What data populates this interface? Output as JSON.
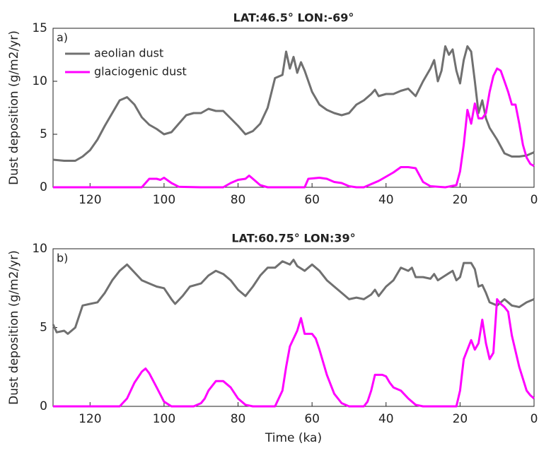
{
  "chart_data": [
    {
      "type": "line",
      "title": "LAT:46.5° LON:-69°",
      "annotation": "a)",
      "ylabel": "Dust deposition (g/m2/yr)",
      "xlim": [
        130,
        0
      ],
      "xticks": [
        120,
        100,
        80,
        60,
        40,
        20,
        0
      ],
      "ylim": [
        0,
        15
      ],
      "yticks": [
        0,
        5,
        10,
        15
      ],
      "legend": "upper left",
      "series": [
        {
          "name": "aeolian dust",
          "color": "#707070",
          "x": [
            130,
            127,
            124,
            122,
            120,
            118,
            116,
            114,
            112,
            110,
            108,
            106,
            104,
            102,
            100,
            98,
            96,
            94,
            92,
            90,
            88,
            86,
            84,
            82,
            80,
            78,
            76,
            74,
            72,
            70,
            68,
            67,
            66,
            65,
            64,
            63,
            62,
            60,
            58,
            56,
            54,
            52,
            50,
            48,
            46,
            44,
            43,
            42,
            40,
            38,
            36,
            34,
            32,
            30,
            28,
            27,
            26,
            25,
            24,
            23,
            22,
            21,
            20,
            19,
            18,
            17,
            16,
            15,
            14,
            13,
            12,
            10,
            8,
            6,
            4,
            2,
            0
          ],
          "values": [
            2.6,
            2.5,
            2.5,
            2.9,
            3.5,
            4.5,
            5.8,
            7.0,
            8.2,
            8.5,
            7.8,
            6.6,
            5.9,
            5.5,
            5.0,
            5.2,
            6.0,
            6.8,
            7.0,
            7.0,
            7.4,
            7.2,
            7.2,
            6.5,
            5.8,
            5.0,
            5.3,
            6.0,
            7.5,
            10.3,
            10.6,
            12.8,
            11.2,
            12.3,
            10.8,
            11.8,
            11.0,
            9.0,
            7.8,
            7.3,
            7.0,
            6.8,
            7.0,
            7.8,
            8.2,
            8.8,
            9.2,
            8.6,
            8.8,
            8.8,
            9.1,
            9.3,
            8.6,
            10.0,
            11.2,
            12.0,
            10.0,
            11.0,
            13.3,
            12.5,
            13.0,
            11.0,
            9.8,
            12.0,
            13.3,
            12.8,
            10.0,
            7.0,
            8.2,
            6.5,
            5.6,
            4.5,
            3.2,
            2.9,
            2.9,
            3.0,
            3.3
          ]
        },
        {
          "name": "glaciogenic dust",
          "color": "#ff00ff",
          "x": [
            130,
            106,
            104,
            102,
            101,
            100,
            98,
            96,
            90,
            84,
            82,
            80,
            78,
            77,
            76,
            74,
            72,
            62,
            61,
            58,
            56,
            54,
            52,
            50,
            48,
            46,
            44,
            42,
            40,
            38,
            36,
            34,
            32,
            30,
            28,
            24,
            21,
            20,
            19,
            18,
            17,
            16,
            15,
            14,
            13,
            12,
            11,
            10,
            9,
            8,
            7,
            6,
            5,
            4,
            3,
            2,
            1,
            0
          ],
          "values": [
            0,
            0,
            0.8,
            0.8,
            0.7,
            0.9,
            0.4,
            0.05,
            0,
            0,
            0.4,
            0.7,
            0.8,
            1.1,
            0.8,
            0.2,
            0,
            0,
            0.8,
            0.9,
            0.8,
            0.5,
            0.4,
            0.1,
            0,
            0,
            0.3,
            0.6,
            1.0,
            1.4,
            1.9,
            1.9,
            1.8,
            0.5,
            0.1,
            0,
            0.2,
            1.5,
            4.0,
            7.3,
            6.0,
            7.9,
            6.5,
            6.5,
            7.0,
            9.0,
            10.5,
            11.2,
            11.0,
            10.0,
            9.0,
            7.8,
            7.8,
            6.0,
            4.0,
            2.8,
            2.2,
            2.0
          ]
        }
      ]
    },
    {
      "type": "line",
      "title": "LAT:60.75° LON:39°",
      "annotation": "b)",
      "ylabel": "Dust deposition (g/m2/yr)",
      "xlabel": "Time (ka)",
      "xlim": [
        130,
        0
      ],
      "xticks": [
        120,
        100,
        80,
        60,
        40,
        20,
        0
      ],
      "ylim": [
        0,
        10
      ],
      "yticks": [
        0,
        5,
        10
      ],
      "series": [
        {
          "color": "#707070",
          "x": [
            130,
            129,
            127,
            126,
            124,
            122,
            120,
            118,
            116,
            114,
            112,
            110,
            108,
            106,
            104,
            102,
            100,
            98,
            97,
            95,
            93,
            90,
            88,
            86,
            84,
            82,
            80,
            78,
            76,
            74,
            72,
            70,
            68,
            66,
            65,
            64,
            62,
            60,
            58,
            56,
            54,
            52,
            50,
            48,
            46,
            44,
            43,
            42,
            40,
            38,
            36,
            34,
            33,
            32,
            30,
            28,
            27,
            26,
            24,
            22,
            21,
            20,
            19,
            17,
            16,
            15,
            14,
            13,
            12,
            10,
            8,
            6,
            4,
            2,
            0
          ],
          "values": [
            5.2,
            4.7,
            4.8,
            4.6,
            5.0,
            6.4,
            6.5,
            6.6,
            7.2,
            8.0,
            8.6,
            9.0,
            8.5,
            8.0,
            7.8,
            7.6,
            7.5,
            6.8,
            6.5,
            7.0,
            7.6,
            7.8,
            8.3,
            8.6,
            8.4,
            8.0,
            7.4,
            7.0,
            7.6,
            8.3,
            8.8,
            8.8,
            9.2,
            9.0,
            9.3,
            8.9,
            8.6,
            9.0,
            8.6,
            8.0,
            7.6,
            7.2,
            6.8,
            6.9,
            6.8,
            7.1,
            7.4,
            7.0,
            7.6,
            8.0,
            8.8,
            8.6,
            8.8,
            8.2,
            8.2,
            8.1,
            8.4,
            8.0,
            8.3,
            8.6,
            8.0,
            8.2,
            9.1,
            9.1,
            8.7,
            7.6,
            7.7,
            7.2,
            6.6,
            6.4,
            6.8,
            6.4,
            6.3,
            6.6,
            6.8
          ]
        },
        {
          "color": "#ff00ff",
          "x": [
            130,
            112,
            110,
            108,
            106,
            105,
            104,
            102,
            100,
            98,
            92,
            90,
            89,
            88,
            86,
            84,
            82,
            80,
            78,
            76,
            70,
            68,
            67,
            66,
            64,
            63,
            62,
            60,
            59,
            58,
            56,
            54,
            52,
            50,
            46,
            45,
            44,
            43,
            41,
            40,
            39,
            38,
            36,
            34,
            32,
            30,
            21,
            20,
            19,
            17,
            16,
            15,
            14,
            13,
            12,
            11,
            10,
            9,
            8,
            7,
            6,
            4,
            2,
            1,
            0
          ],
          "values": [
            0,
            0,
            0.5,
            1.5,
            2.2,
            2.4,
            2.1,
            1.2,
            0.3,
            0,
            0,
            0.2,
            0.5,
            1.0,
            1.6,
            1.6,
            1.2,
            0.5,
            0.1,
            0,
            0,
            1.0,
            2.5,
            3.8,
            4.8,
            5.6,
            4.6,
            4.6,
            4.3,
            3.6,
            2.0,
            0.8,
            0.2,
            0,
            0,
            0.3,
            1.0,
            2.0,
            2.0,
            1.9,
            1.5,
            1.2,
            1.0,
            0.5,
            0.1,
            0,
            0,
            1.0,
            3.0,
            4.2,
            3.6,
            4.0,
            5.5,
            4.0,
            3.0,
            3.4,
            6.8,
            6.5,
            6.3,
            6.0,
            4.5,
            2.5,
            1.0,
            0.7,
            0.5
          ]
        }
      ]
    }
  ]
}
